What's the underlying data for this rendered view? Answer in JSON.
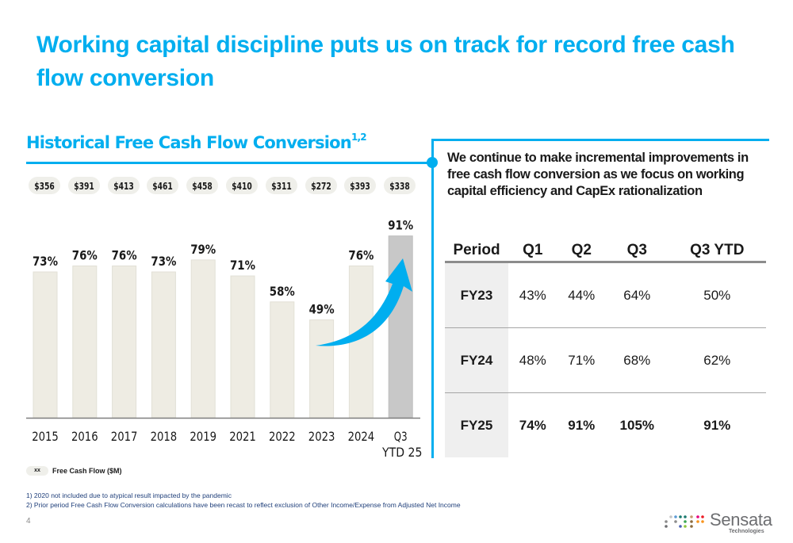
{
  "slide": {
    "title": "Working capital discipline puts us on track for record free cash flow conversion",
    "page_number": "4"
  },
  "left_panel": {
    "heading": "Historical Free Cash Flow Conversion",
    "heading_superscript": "1,2",
    "fcf_pills": [
      "$356",
      "$391",
      "$413",
      "$461",
      "$458",
      "$410",
      "$311",
      "$272",
      "$393",
      "$338"
    ],
    "legend": {
      "pill_label": "xx",
      "text": "Free Cash Flow ($M)"
    }
  },
  "chart_data": {
    "type": "bar",
    "title": "Historical Free Cash Flow Conversion",
    "categories": [
      "2015",
      "2016",
      "2017",
      "2018",
      "2019",
      "2021",
      "2022",
      "2023",
      "2024",
      "Q3 YTD 25"
    ],
    "category_lines": [
      [
        "2015"
      ],
      [
        "2016"
      ],
      [
        "2017"
      ],
      [
        "2018"
      ],
      [
        "2019"
      ],
      [
        "2021"
      ],
      [
        "2022"
      ],
      [
        "2023"
      ],
      [
        "2024"
      ],
      [
        "Q3",
        "YTD 25"
      ]
    ],
    "values": [
      73,
      76,
      76,
      73,
      79,
      71,
      58,
      49,
      76,
      91
    ],
    "data_labels": [
      "73%",
      "76%",
      "76%",
      "73%",
      "79%",
      "71%",
      "58%",
      "49%",
      "76%",
      "91%"
    ],
    "free_cash_flow_musd": [
      356,
      391,
      413,
      461,
      458,
      410,
      311,
      272,
      393,
      338
    ],
    "unit": "%",
    "xlabel": "",
    "ylabel": "",
    "ylim": [
      0,
      100
    ],
    "grid": false,
    "highlight_category": "Q3 YTD 25",
    "annotation": "upward trend arrow from 2023 to Q3 YTD 25",
    "colors": {
      "bar": "#eeece3",
      "highlight_bar": "#c8c8c8",
      "arrow": "#00aeef",
      "axis": "#7f7f7f"
    }
  },
  "right_panel": {
    "text": "We continue to make incremental improvements in free cash flow conversion as we focus on working capital efficiency and CapEx rationalization",
    "table": {
      "headers": [
        "Period",
        "Q1",
        "Q2",
        "Q3",
        "Q3 YTD"
      ],
      "rows": [
        [
          "FY23",
          "43%",
          "44%",
          "64%",
          "50%"
        ],
        [
          "FY24",
          "48%",
          "71%",
          "68%",
          "62%"
        ],
        [
          "FY25",
          "74%",
          "91%",
          "105%",
          "91%"
        ]
      ]
    }
  },
  "footnotes": [
    "1) 2020 not included due to atypical result impacted by the pandemic",
    "2) Prior period Free Cash Flow Conversion calculations have been recast to reflect exclusion of Other Income/Expense from Adjusted Net Income"
  ],
  "logo": {
    "name": "Sensata",
    "sub": "Technologies"
  },
  "colors": {
    "accent": "#00aeef",
    "text": "#1a1a1a",
    "footnote": "#1f3f7a"
  }
}
